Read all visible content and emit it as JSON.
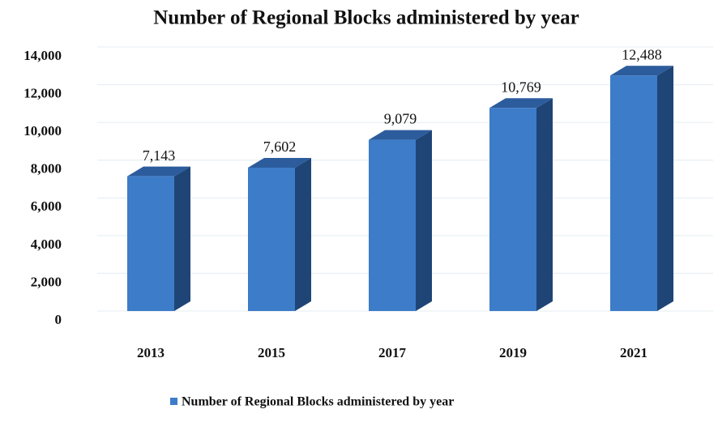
{
  "chart_data": {
    "type": "bar3d",
    "title": "Number of Regional Blocks administered by year",
    "categories": [
      "2013",
      "2015",
      "2017",
      "2019",
      "2021"
    ],
    "series": [
      {
        "name": "Number of Regional Blocks administered by year",
        "color": "#3d7cc9",
        "values": [
          7143,
          7602,
          9079,
          10769,
          12488
        ],
        "value_labels": [
          "7,143",
          "7,602",
          "9,079",
          "10,769",
          "12,488"
        ]
      }
    ],
    "ylim": [
      0,
      14000
    ],
    "yticks": [
      0,
      {
        "value": 2000,
        "label": "2,000"
      },
      {
        "value": 4000,
        "label": "4,000"
      },
      {
        "value": 6000,
        "label": "6,000"
      },
      {
        "value": 8000,
        "label": "8,000"
      },
      {
        "value": 10000,
        "label": "10,000"
      },
      {
        "value": 12000,
        "label": "12,000"
      },
      {
        "value": 14000,
        "label": "14,000"
      }
    ],
    "grid": true,
    "legend": "bottom"
  }
}
